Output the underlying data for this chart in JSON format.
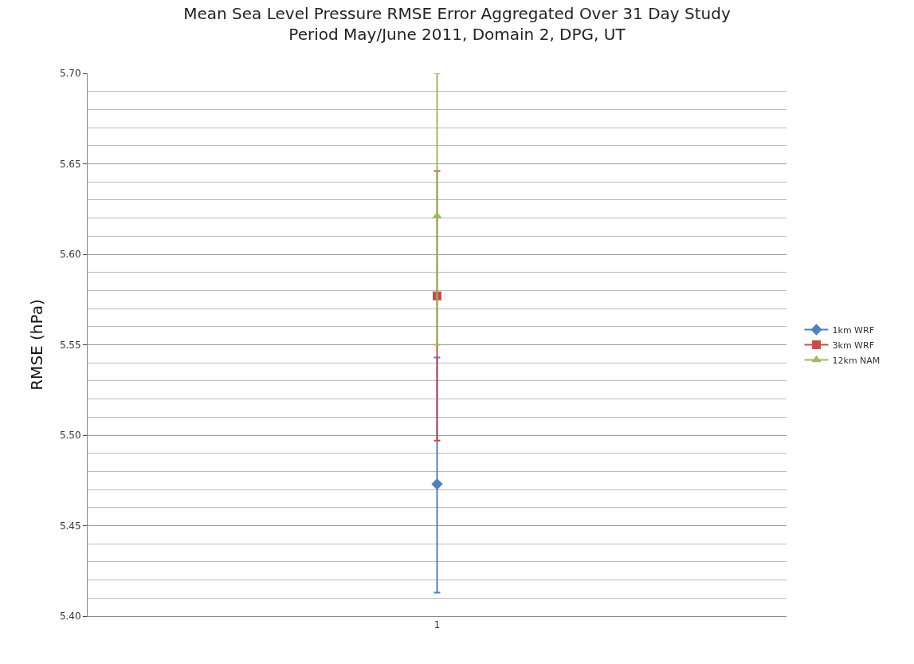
{
  "chart_data": {
    "type": "line",
    "title": "Mean Sea Level Pressure RMSE Error Aggregated Over 31 Day Study\nPeriod May/June 2011, Domain 2, DPG, UT",
    "ylabel": "RMSE (hPa)",
    "categories": [
      "1"
    ],
    "series": [
      {
        "name": "1km WRF",
        "color": "#4f81bd",
        "marker": "diamond",
        "values": [
          5.473
        ],
        "errors": [
          [
            5.413,
            5.543
          ]
        ]
      },
      {
        "name": "3km WRF",
        "color": "#c0504d",
        "marker": "square",
        "values": [
          5.577
        ],
        "errors": [
          [
            5.497,
            5.646
          ]
        ]
      },
      {
        "name": "12km NAM",
        "color": "#9bbb59",
        "marker": "triangle",
        "values": [
          5.621
        ],
        "errors": [
          [
            5.55,
            5.7
          ]
        ]
      }
    ],
    "ylim": [
      5.4,
      5.7
    ],
    "yticks": [
      {
        "value": 5.4,
        "label": "5.40"
      },
      {
        "value": 5.45,
        "label": "5.45"
      },
      {
        "value": 5.5,
        "label": "5.50"
      },
      {
        "value": 5.55,
        "label": "5.55"
      },
      {
        "value": 5.6,
        "label": "5.60"
      },
      {
        "value": 5.65,
        "label": "5.65"
      },
      {
        "value": 5.7,
        "label": "5.70"
      }
    ],
    "grid": "y",
    "legend": "right"
  }
}
